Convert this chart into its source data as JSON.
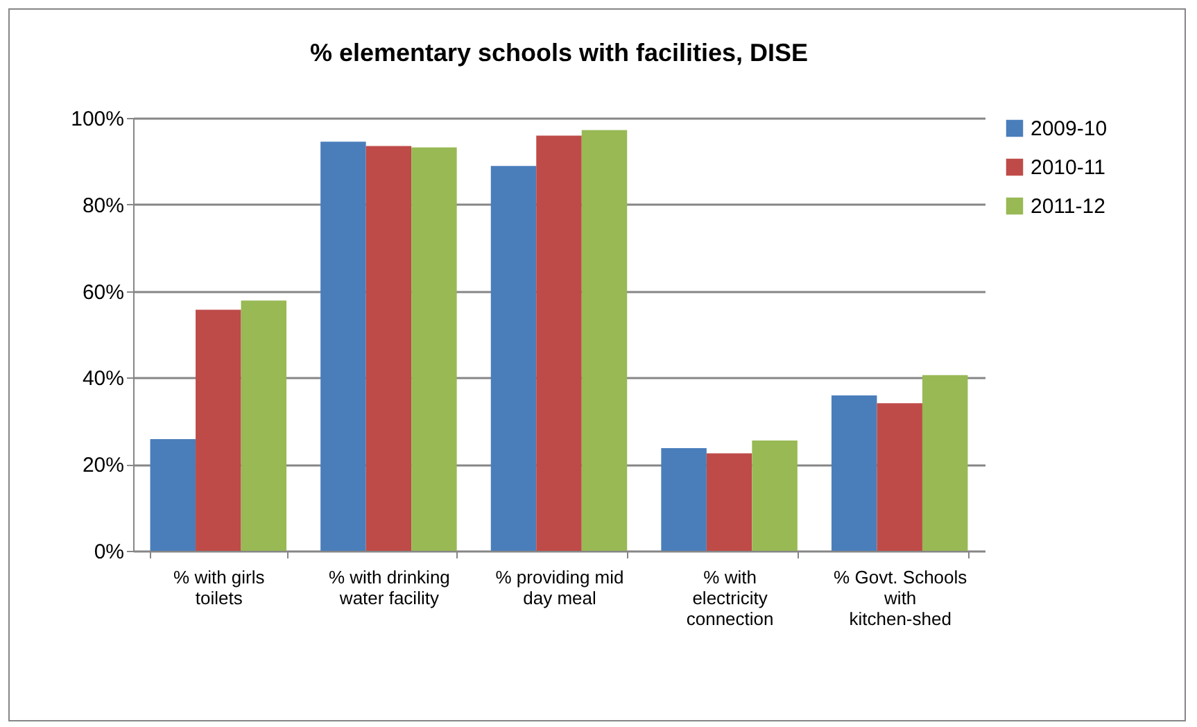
{
  "chart_data": {
    "type": "bar",
    "title": "% elementary schools with facilities, DISE",
    "categories": [
      "% with girls toilets",
      "% with drinking water facility",
      "% providing mid day meal",
      "% with electricity connection",
      "% Govt. Schools with kitchen-shed"
    ],
    "series": [
      {
        "name": "2009-10",
        "color": "#4a7ebb",
        "values": [
          25.8,
          94.5,
          88.9,
          23.7,
          35.9
        ]
      },
      {
        "name": "2010-11",
        "color": "#be4b48",
        "values": [
          55.7,
          93.5,
          95.9,
          22.5,
          34.1
        ]
      },
      {
        "name": "2011-12",
        "color": "#98b954",
        "values": [
          57.8,
          93.2,
          97.2,
          25.5,
          40.6
        ]
      }
    ],
    "ylim": [
      0,
      100
    ],
    "yticks": [
      {
        "value": 0,
        "label": "0%"
      },
      {
        "value": 20,
        "label": "20%"
      },
      {
        "value": 40,
        "label": "40%"
      },
      {
        "value": 60,
        "label": "60%"
      },
      {
        "value": 80,
        "label": "80%"
      },
      {
        "value": 100,
        "label": "100%"
      }
    ],
    "grid": "y",
    "legend": "right"
  }
}
